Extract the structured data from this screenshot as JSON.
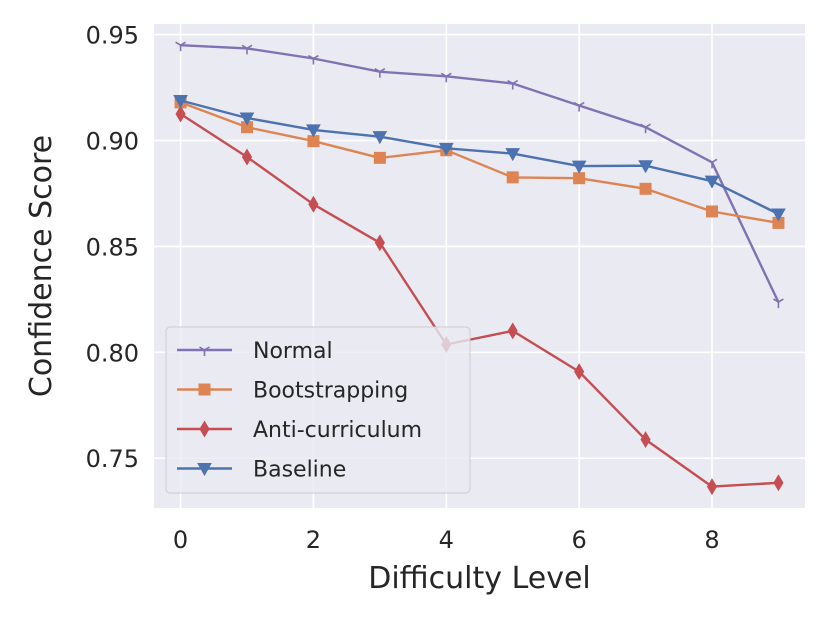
{
  "chart_data": {
    "type": "line",
    "title": "",
    "xlabel": "Difficulty Level",
    "ylabel": "Confidence Score",
    "xlim": [
      -0.4,
      9.4
    ],
    "ylim": [
      0.7265,
      0.955
    ],
    "xticks": [
      0,
      2,
      4,
      6,
      8
    ],
    "xtick_labels": [
      "0",
      "2",
      "4",
      "6",
      "8"
    ],
    "yticks": [
      0.75,
      0.8,
      0.85,
      0.9,
      0.95
    ],
    "ytick_labels": [
      "0.75",
      "0.80",
      "0.85",
      "0.90",
      "0.95"
    ],
    "grid": true,
    "legend_position": "lower-left",
    "x": [
      0,
      1,
      2,
      3,
      4,
      5,
      6,
      7,
      8,
      9
    ],
    "series": [
      {
        "name": "Normal",
        "color": "#8172b3",
        "marker": "tri-down",
        "values": [
          0.945,
          0.9435,
          0.9387,
          0.9325,
          0.9303,
          0.9269,
          0.9165,
          0.9063,
          0.8897,
          0.8237
        ]
      },
      {
        "name": "Bootstrapping",
        "color": "#dd8452",
        "marker": "square",
        "values": [
          0.918,
          0.9063,
          0.8997,
          0.8918,
          0.8954,
          0.8826,
          0.8822,
          0.8772,
          0.8665,
          0.8611
        ]
      },
      {
        "name": "Anti-curriculum",
        "color": "#c44e52",
        "marker": "thin-diamond",
        "values": [
          0.9125,
          0.8922,
          0.8699,
          0.8517,
          0.8037,
          0.8101,
          0.7909,
          0.7588,
          0.7366,
          0.7384
        ]
      },
      {
        "name": "Baseline",
        "color": "#4c72b0",
        "marker": "triangle-down",
        "values": [
          0.9189,
          0.9106,
          0.905,
          0.9018,
          0.8963,
          0.8938,
          0.8879,
          0.8881,
          0.8808,
          0.8653
        ]
      }
    ]
  }
}
